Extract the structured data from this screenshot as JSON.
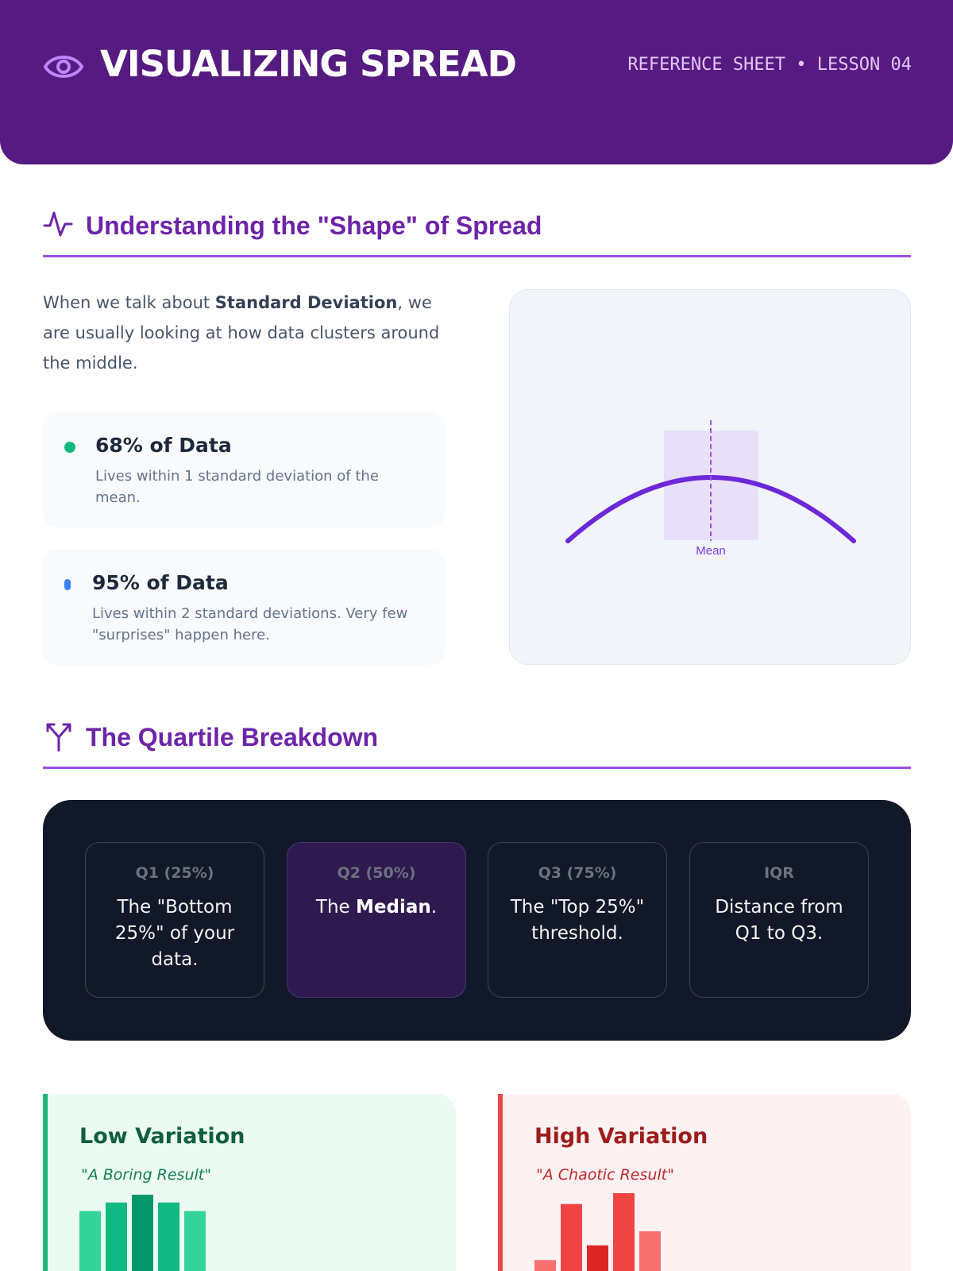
{
  "header": {
    "title": "VISUALIZING SPREAD",
    "meta": "REFERENCE SHEET • LESSON 04"
  },
  "section_shape": {
    "title": "Understanding the \"Shape\" of Spread",
    "intro_before": "When we talk about ",
    "intro_bold": "Standard Deviation",
    "intro_after": ", we are usually looking at how data clusters around the middle.",
    "stats": [
      {
        "title": "68% of Data",
        "description": "Lives within 1 standard deviation of the mean.",
        "color": "#10b981"
      },
      {
        "title": "95% of Data",
        "description": "Lives within 2 standard deviations. Very few \"surprises\" happen here.",
        "color": "#3b82f6"
      }
    ],
    "curve_label": "Mean"
  },
  "section_quartile": {
    "title": "The Quartile Breakdown",
    "cards": [
      {
        "heading": "Q1 (25%)",
        "text_before": "The \"Bottom 25%\" of your data.",
        "text_bold": "",
        "text_after": ""
      },
      {
        "heading": "Q2 (50%)",
        "text_before": "The ",
        "text_bold": "Median",
        "text_after": "."
      },
      {
        "heading": "Q3 (75%)",
        "text_before": "The \"Top 25%\" threshold.",
        "text_bold": "",
        "text_after": ""
      },
      {
        "heading": "IQR",
        "text_before": "Distance from Q1 to Q3.",
        "text_bold": "",
        "text_after": ""
      }
    ]
  },
  "variation": {
    "low": {
      "title": "Low Variation",
      "subtitle": "\"A Boring Result\"",
      "bar_levels": [
        0.77,
        0.88,
        0.98,
        0.88,
        0.77
      ]
    },
    "high": {
      "title": "High Variation",
      "subtitle": "\"A Chaotic Result\"",
      "bar_levels": [
        0.14,
        0.86,
        0.33,
        1.0,
        0.51
      ]
    }
  },
  "colors": {
    "brand": "#561b81",
    "accent": "#6d24a9",
    "curve": "#6d28d9",
    "low_bars": [
      "#34d399",
      "#10b981",
      "#059669",
      "#10b981",
      "#34d399"
    ],
    "high_bars": [
      "#f87171",
      "#ef4444",
      "#dc2626",
      "#ef4444",
      "#f87171"
    ]
  }
}
